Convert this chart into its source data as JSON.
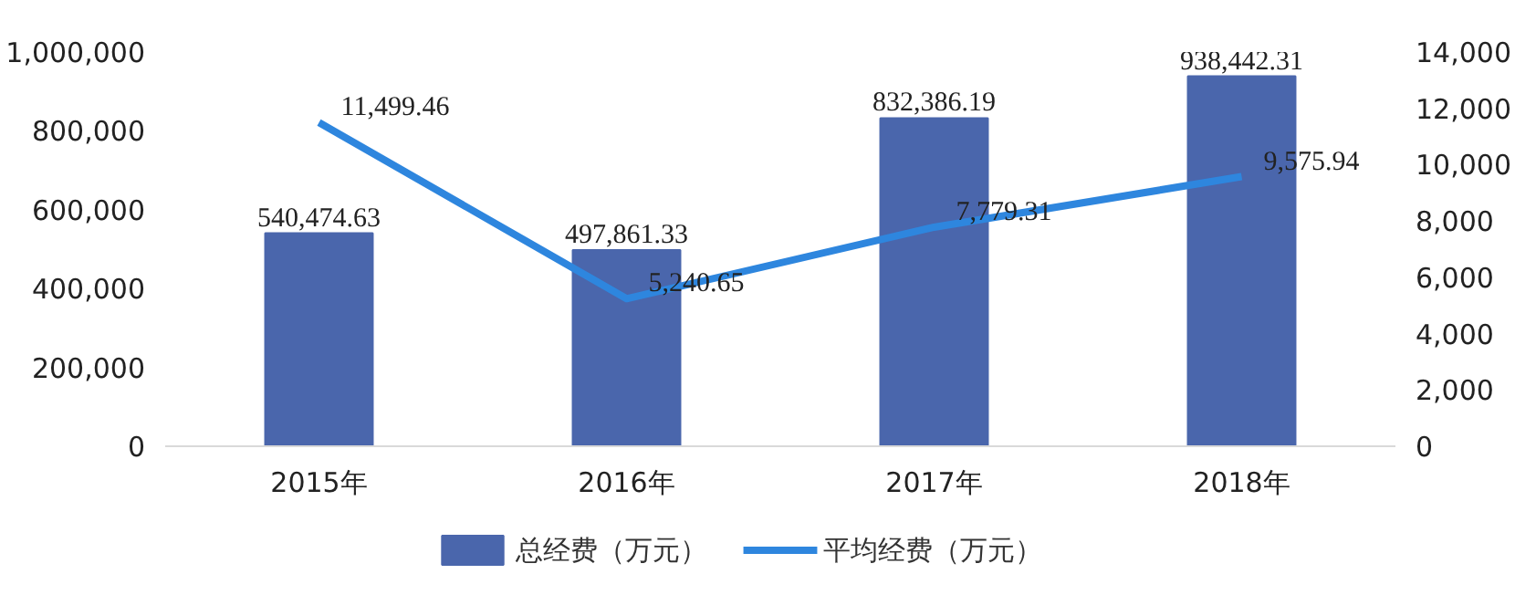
{
  "chart_data": {
    "type": "bar",
    "categories": [
      "2015年",
      "2016年",
      "2017年",
      "2018年"
    ],
    "series": [
      {
        "name": "总经费（万元）",
        "color": "#4a66ac",
        "values": [
          540474.63,
          497861.33,
          832386.19,
          938442.31
        ]
      },
      {
        "name": "平均经费（万元）",
        "type": "line",
        "axis": "y2",
        "color": "#2e86de",
        "values": [
          11499.46,
          5240.65,
          7779.31,
          9575.94
        ]
      }
    ],
    "ylim": [
      0,
      1000000
    ],
    "yticks": [
      {
        "value": 0,
        "label": "0"
      },
      {
        "value": 200000,
        "label": "200,000"
      },
      {
        "value": 400000,
        "label": "400,000"
      },
      {
        "value": 600000,
        "label": "600,000"
      },
      {
        "value": 800000,
        "label": "800,000"
      },
      {
        "value": 1000000,
        "label": "1,000,000"
      }
    ],
    "y2lim": [
      0,
      14000
    ],
    "y2ticks": [
      {
        "value": 0,
        "label": "0"
      },
      {
        "value": 2000,
        "label": "2,000"
      },
      {
        "value": 4000,
        "label": "4,000"
      },
      {
        "value": 6000,
        "label": "6,000"
      },
      {
        "value": 8000,
        "label": "8,000"
      },
      {
        "value": 10000,
        "label": "10,000"
      },
      {
        "value": 12000,
        "label": "12,000"
      },
      {
        "value": 14000,
        "label": "14,000"
      }
    ],
    "value_labels": [
      [
        "540,474.63",
        "497,861.33",
        "832,386.19",
        "938,442.31"
      ],
      [
        "11,499.46",
        "5,240.65",
        "7,779.31",
        "9,575.94"
      ]
    ],
    "grid": false,
    "legend": "bottom",
    "marker": "none",
    "line_style": "solid"
  }
}
